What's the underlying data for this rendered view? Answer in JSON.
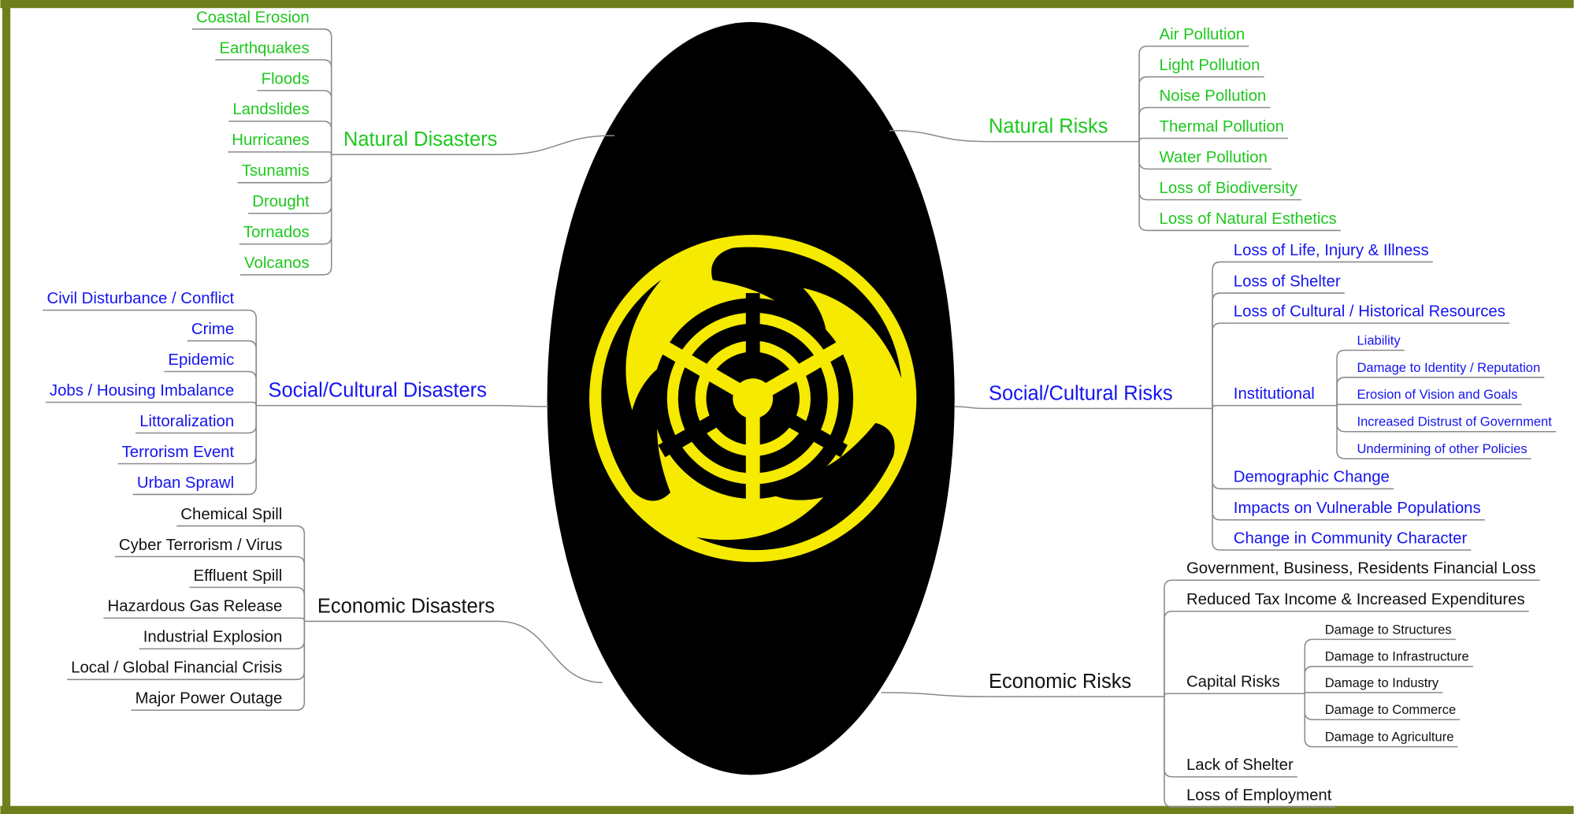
{
  "branches": [
    {
      "label": "Natural Disasters",
      "children": [
        {
          "label": "Coastal Erosion"
        },
        {
          "label": "Earthquakes"
        },
        {
          "label": "Floods"
        },
        {
          "label": "Landslides"
        },
        {
          "label": "Hurricanes"
        },
        {
          "label": "Tsunamis"
        },
        {
          "label": "Drought"
        },
        {
          "label": "Tornados"
        },
        {
          "label": "Volcanos"
        }
      ]
    },
    {
      "label": "Social/Cultural Disasters",
      "children": [
        {
          "label": "Civil Disturbance / Conflict"
        },
        {
          "label": "Crime"
        },
        {
          "label": "Epidemic"
        },
        {
          "label": "Jobs / Housing Imbalance"
        },
        {
          "label": "Littoralization"
        },
        {
          "label": "Terrorism Event"
        },
        {
          "label": "Urban Sprawl"
        }
      ]
    },
    {
      "label": "Economic Disasters",
      "children": [
        {
          "label": "Chemical Spill"
        },
        {
          "label": "Cyber Terrorism / Virus"
        },
        {
          "label": "Effluent Spill"
        },
        {
          "label": "Hazardous Gas Release"
        },
        {
          "label": "Industrial Explosion"
        },
        {
          "label": "Local / Global Financial Crisis"
        },
        {
          "label": "Major Power Outage"
        }
      ]
    },
    {
      "label": "Natural Risks",
      "children": [
        {
          "label": "Air Pollution"
        },
        {
          "label": "Light Pollution"
        },
        {
          "label": "Noise Pollution"
        },
        {
          "label": "Thermal Pollution"
        },
        {
          "label": "Water Pollution"
        },
        {
          "label": "Loss of Biodiversity"
        },
        {
          "label": "Loss of Natural Esthetics"
        }
      ]
    },
    {
      "label": "Social/Cultural Risks",
      "children": [
        {
          "label": "Loss of Life, Injury & Illness"
        },
        {
          "label": "Loss of Shelter"
        },
        {
          "label": "Loss of Cultural / Historical Resources"
        },
        {
          "label": "Institutional",
          "children": [
            {
              "label": "Liability"
            },
            {
              "label": "Damage to Identity / Reputation"
            },
            {
              "label": "Erosion of Vision and Goals"
            },
            {
              "label": "Increased Distrust of Government"
            },
            {
              "label": "Undermining of other Policies"
            }
          ]
        },
        {
          "label": "Demographic Change"
        },
        {
          "label": "Impacts on Vulnerable Populations"
        },
        {
          "label": "Change in Community Character"
        }
      ]
    },
    {
      "label": "Economic Risks",
      "children": [
        {
          "label": "Government, Business, Residents Financial Loss"
        },
        {
          "label": "Reduced Tax Income & Increased Expenditures"
        },
        {
          "label": "Capital Risks",
          "children": [
            {
              "label": "Damage to Structures"
            },
            {
              "label": "Damage to Infrastructure"
            },
            {
              "label": "Damage to Industry"
            },
            {
              "label": "Damage to Commerce"
            },
            {
              "label": "Damage to Agriculture"
            }
          ]
        },
        {
          "label": "Lack of Shelter"
        },
        {
          "label": "Loss of Employment"
        }
      ]
    }
  ]
}
